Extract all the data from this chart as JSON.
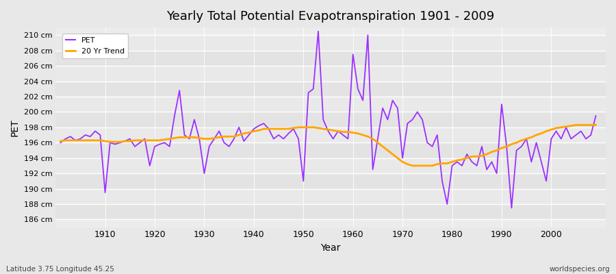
{
  "title": "Yearly Total Potential Evapotranspiration 1901 - 2009",
  "xlabel": "Year",
  "ylabel": "PET",
  "footer_left": "Latitude 3.75 Longitude 45.25",
  "footer_right": "worldspecies.org",
  "pet_color": "#9B30FF",
  "trend_color": "#FFA500",
  "bg_color": "#E8E8E8",
  "plot_bg_color": "#ECECEC",
  "ylim": [
    185.0,
    211.0
  ],
  "yticks": [
    186,
    188,
    190,
    192,
    194,
    196,
    198,
    200,
    202,
    204,
    206,
    208,
    210
  ],
  "xlim": [
    1900,
    2011
  ],
  "xticks": [
    1910,
    1920,
    1930,
    1940,
    1950,
    1960,
    1970,
    1980,
    1990,
    2000
  ],
  "years": [
    1901,
    1902,
    1903,
    1904,
    1905,
    1906,
    1907,
    1908,
    1909,
    1910,
    1911,
    1912,
    1913,
    1914,
    1915,
    1916,
    1917,
    1918,
    1919,
    1920,
    1921,
    1922,
    1923,
    1924,
    1925,
    1926,
    1927,
    1928,
    1929,
    1930,
    1931,
    1932,
    1933,
    1934,
    1935,
    1936,
    1937,
    1938,
    1939,
    1940,
    1941,
    1942,
    1943,
    1944,
    1945,
    1946,
    1947,
    1948,
    1949,
    1950,
    1951,
    1952,
    1953,
    1954,
    1955,
    1956,
    1957,
    1958,
    1959,
    1960,
    1961,
    1962,
    1963,
    1964,
    1965,
    1966,
    1967,
    1968,
    1969,
    1970,
    1971,
    1972,
    1973,
    1974,
    1975,
    1976,
    1977,
    1978,
    1979,
    1980,
    1981,
    1982,
    1983,
    1984,
    1985,
    1986,
    1987,
    1988,
    1989,
    1990,
    1991,
    1992,
    1993,
    1994,
    1995,
    1996,
    1997,
    1998,
    1999,
    2000,
    2001,
    2002,
    2003,
    2004,
    2005,
    2006,
    2007,
    2008,
    2009
  ],
  "pet_values": [
    196.0,
    196.5,
    196.8,
    196.3,
    196.5,
    197.0,
    196.8,
    197.5,
    197.0,
    189.5,
    196.0,
    195.8,
    196.0,
    196.2,
    196.5,
    195.5,
    196.0,
    196.5,
    193.0,
    195.5,
    195.8,
    196.0,
    195.5,
    199.5,
    202.8,
    197.0,
    196.5,
    199.0,
    196.5,
    192.0,
    195.5,
    196.5,
    197.5,
    196.0,
    195.5,
    196.5,
    198.0,
    196.2,
    197.0,
    197.8,
    198.2,
    198.5,
    197.8,
    196.5,
    197.0,
    196.5,
    197.2,
    197.8,
    196.5,
    191.0,
    202.5,
    203.0,
    210.5,
    199.0,
    197.5,
    196.5,
    197.5,
    197.0,
    196.5,
    207.5,
    203.0,
    201.5,
    210.0,
    192.5,
    196.5,
    200.5,
    199.0,
    201.5,
    200.5,
    194.0,
    198.5,
    199.0,
    200.0,
    199.0,
    196.0,
    195.5,
    197.0,
    191.0,
    188.0,
    193.0,
    193.5,
    193.0,
    194.5,
    193.5,
    193.0,
    195.5,
    192.5,
    193.5,
    192.0,
    201.0,
    195.5,
    187.5,
    195.0,
    195.5,
    196.5,
    193.5,
    196.0,
    193.5,
    191.0,
    196.5,
    197.5,
    196.5,
    198.0,
    196.5,
    197.0,
    197.5,
    196.5,
    197.0,
    199.5
  ],
  "trend_values": [
    196.2,
    196.3,
    196.3,
    196.3,
    196.3,
    196.3,
    196.3,
    196.3,
    196.3,
    196.2,
    196.1,
    196.1,
    196.1,
    196.2,
    196.2,
    196.3,
    196.3,
    196.3,
    196.3,
    196.3,
    196.3,
    196.4,
    196.5,
    196.6,
    196.7,
    196.7,
    196.7,
    196.7,
    196.6,
    196.5,
    196.5,
    196.6,
    196.7,
    196.8,
    196.8,
    196.8,
    197.0,
    197.2,
    197.3,
    197.5,
    197.6,
    197.8,
    197.8,
    197.8,
    197.8,
    197.8,
    197.8,
    197.9,
    198.0,
    198.0,
    198.0,
    198.0,
    197.9,
    197.8,
    197.7,
    197.6,
    197.5,
    197.4,
    197.4,
    197.3,
    197.2,
    197.0,
    196.8,
    196.5,
    196.0,
    195.5,
    195.0,
    194.5,
    194.0,
    193.5,
    193.2,
    193.0,
    193.0,
    193.0,
    193.0,
    193.0,
    193.2,
    193.3,
    193.3,
    193.5,
    193.7,
    193.8,
    194.0,
    194.2,
    194.2,
    194.3,
    194.5,
    194.8,
    195.0,
    195.3,
    195.5,
    195.8,
    196.0,
    196.3,
    196.5,
    196.7,
    197.0,
    197.2,
    197.5,
    197.7,
    197.9,
    198.0,
    198.1,
    198.2,
    198.3,
    198.3,
    198.3,
    198.3,
    198.3
  ]
}
